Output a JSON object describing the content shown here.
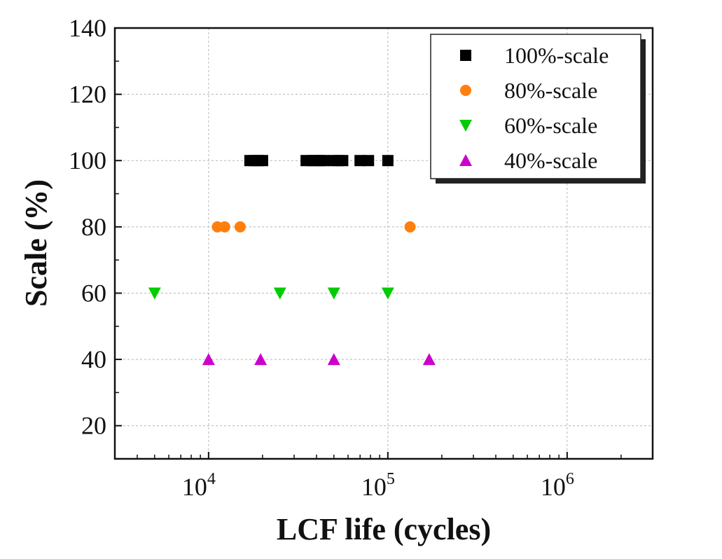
{
  "chart_data": {
    "type": "scatter",
    "xlabel": "LCF life (cycles)",
    "ylabel": "Scale (%)",
    "x_scale": "log",
    "xlim": [
      3000,
      3000000
    ],
    "ylim": [
      10,
      140
    ],
    "x_ticks": [
      {
        "value": 10000,
        "base": "10",
        "exp": "4"
      },
      {
        "value": 100000,
        "base": "10",
        "exp": "5"
      },
      {
        "value": 1000000,
        "base": "10",
        "exp": "6"
      }
    ],
    "y_ticks": [
      20,
      40,
      60,
      80,
      100,
      120,
      140
    ],
    "grid": true,
    "legend_position": "top-right",
    "series": [
      {
        "name": "100%-scale",
        "marker": "square",
        "color": "#000000",
        "points": [
          {
            "x": 17000,
            "y": 100
          },
          {
            "x": 18000,
            "y": 100
          },
          {
            "x": 19000,
            "y": 100
          },
          {
            "x": 20000,
            "y": 100
          },
          {
            "x": 35000,
            "y": 100
          },
          {
            "x": 38000,
            "y": 100
          },
          {
            "x": 40000,
            "y": 100
          },
          {
            "x": 42000,
            "y": 100
          },
          {
            "x": 44000,
            "y": 100
          },
          {
            "x": 50000,
            "y": 100
          },
          {
            "x": 53000,
            "y": 100
          },
          {
            "x": 56000,
            "y": 100
          },
          {
            "x": 70000,
            "y": 100
          },
          {
            "x": 78000,
            "y": 100
          },
          {
            "x": 100000,
            "y": 100
          }
        ]
      },
      {
        "name": "80%-scale",
        "marker": "circle",
        "color": "#ff7f0e",
        "points": [
          {
            "x": 11200,
            "y": 80
          },
          {
            "x": 12300,
            "y": 80
          },
          {
            "x": 15000,
            "y": 80
          },
          {
            "x": 133000,
            "y": 80
          }
        ]
      },
      {
        "name": "60%-scale",
        "marker": "triangle-down",
        "color": "#00cc00",
        "points": [
          {
            "x": 5000,
            "y": 60
          },
          {
            "x": 25000,
            "y": 60
          },
          {
            "x": 50000,
            "y": 60
          },
          {
            "x": 100000,
            "y": 60
          }
        ]
      },
      {
        "name": "40%-scale",
        "marker": "triangle-up",
        "color": "#cc00cc",
        "points": [
          {
            "x": 10000,
            "y": 40
          },
          {
            "x": 19500,
            "y": 40
          },
          {
            "x": 50000,
            "y": 40
          },
          {
            "x": 170000,
            "y": 40
          }
        ]
      }
    ]
  }
}
